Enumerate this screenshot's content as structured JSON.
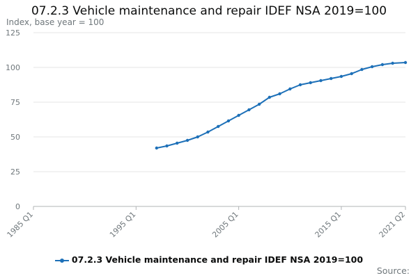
{
  "chart_data": {
    "type": "line",
    "title": "07.2.3 Vehicle maintenance and repair IDEF NSA 2019=100",
    "ylabel": "Index, base year = 100",
    "xlabel": "",
    "ylim": [
      0,
      125
    ],
    "yticks": [
      0,
      25,
      50,
      75,
      100,
      125
    ],
    "x_tick_labels": [
      "1985 Q1",
      "1995 Q1",
      "2005 Q1",
      "2015 Q1",
      "2021 Q2"
    ],
    "x_range": [
      "1985 Q1",
      "2021 Q2"
    ],
    "grid": "horizontal",
    "legend_position": "bottom",
    "series": [
      {
        "name": "07.2.3 Vehicle maintenance and repair IDEF NSA 2019=100",
        "color": "#1d70b8",
        "points": [
          [
            "1997 Q1",
            42.0
          ],
          [
            "1998 Q1",
            43.5
          ],
          [
            "1999 Q1",
            45.5
          ],
          [
            "2000 Q1",
            47.5
          ],
          [
            "2001 Q1",
            50.0
          ],
          [
            "2002 Q1",
            53.5
          ],
          [
            "2003 Q1",
            57.5
          ],
          [
            "2004 Q1",
            61.5
          ],
          [
            "2005 Q1",
            65.5
          ],
          [
            "2006 Q1",
            69.5
          ],
          [
            "2007 Q1",
            73.5
          ],
          [
            "2008 Q1",
            78.5
          ],
          [
            "2009 Q1",
            81.0
          ],
          [
            "2010 Q1",
            84.5
          ],
          [
            "2011 Q1",
            87.5
          ],
          [
            "2012 Q1",
            89.0
          ],
          [
            "2013 Q1",
            90.5
          ],
          [
            "2014 Q1",
            92.0
          ],
          [
            "2015 Q1",
            93.5
          ],
          [
            "2016 Q1",
            95.5
          ],
          [
            "2017 Q1",
            98.5
          ],
          [
            "2018 Q1",
            100.5
          ],
          [
            "2019 Q1",
            102.0
          ],
          [
            "2020 Q1",
            103.0
          ],
          [
            "2021 Q2",
            103.5
          ]
        ]
      }
    ]
  },
  "footer": {
    "source": "Source:"
  }
}
